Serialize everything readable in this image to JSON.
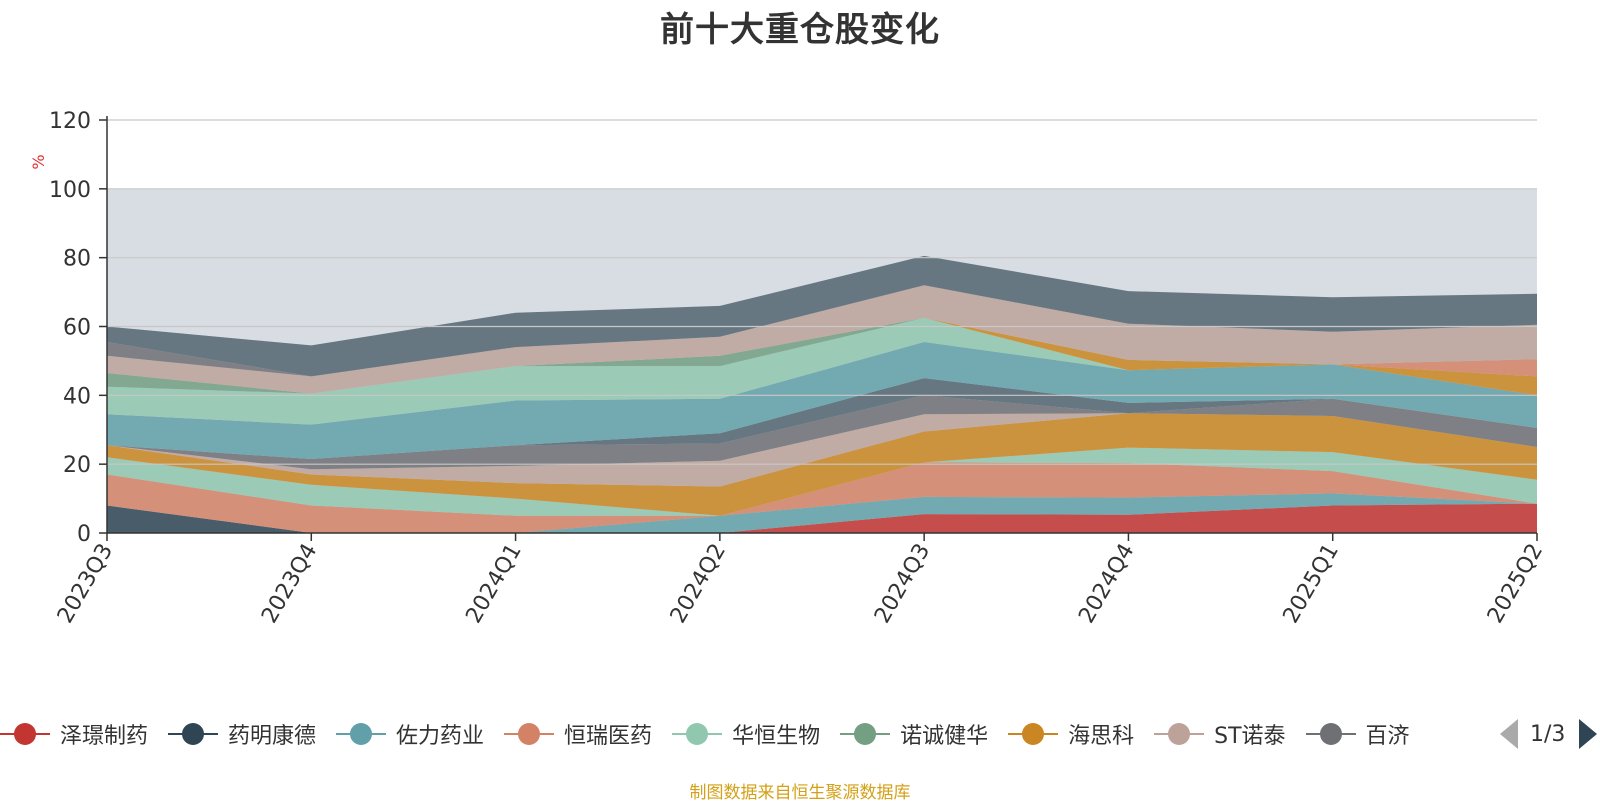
{
  "chart_data": {
    "type": "area",
    "title": "前十大重仓股变化",
    "ylabel": "%",
    "ylim": [
      0,
      120
    ],
    "yticks": [
      0,
      20,
      40,
      60,
      80,
      100,
      120
    ],
    "categories": [
      "2023Q3",
      "2023Q4",
      "2024Q1",
      "2024Q2",
      "2024Q3",
      "2024Q4",
      "2025Q1",
      "2025Q2"
    ],
    "stacked": true,
    "background_band": {
      "from": 0,
      "to": 100,
      "color": "#d8dde4"
    },
    "series": [
      {
        "name": "泽璟制药",
        "color": "#c23531",
        "values": [
          0,
          0,
          0,
          0,
          5.5,
          5.3,
          8,
          8.5
        ]
      },
      {
        "name": "药明康德",
        "color": "#2f4554",
        "values": [
          8,
          0,
          0,
          0,
          0,
          0,
          0,
          0
        ]
      },
      {
        "name": "佐力药业",
        "color": "#61a0a8",
        "values": [
          0,
          0,
          0,
          5,
          5,
          5,
          3.5,
          0
        ]
      },
      {
        "name": "恒瑞医药",
        "color": "#d48265",
        "values": [
          9,
          8,
          5,
          0,
          10,
          10,
          6.5,
          0
        ]
      },
      {
        "name": "华恒生物",
        "color": "#91c7ae",
        "values": [
          5,
          6,
          5,
          0,
          0,
          4.5,
          5.5,
          7
        ]
      },
      {
        "name": "诺诚健华",
        "color": "#749f83",
        "values": [
          0,
          0,
          0,
          0,
          0,
          0,
          0,
          0
        ]
      },
      {
        "name": "海思科",
        "color": "#ca8622",
        "values": [
          3.5,
          3,
          4.5,
          8.5,
          9,
          10,
          10.5,
          9.5
        ]
      },
      {
        "name": "ST诺泰",
        "color": "#bda29a",
        "values": [
          0,
          1.5,
          5,
          7.5,
          5,
          0,
          0,
          0
        ]
      },
      {
        "name": "百济",
        "color": "#6e7074",
        "values": [
          0,
          3,
          6,
          5,
          5.5,
          0,
          5,
          5.5
        ]
      },
      {
        "name": "",
        "color": "#546570",
        "values": [
          0,
          0,
          0,
          3,
          5,
          3,
          0,
          0
        ]
      },
      {
        "name": "",
        "color": "#6e7074",
        "values": [
          0,
          0,
          0,
          0,
          0,
          0,
          0,
          0
        ]
      },
      {
        "name": "",
        "color": "#61a0a8",
        "values": [
          9,
          10,
          13,
          10,
          10.5,
          9.5,
          10,
          9.5
        ]
      },
      {
        "name": "",
        "color": "#91c7ae",
        "values": [
          8,
          9,
          10,
          9.5,
          7,
          0,
          0,
          0
        ]
      },
      {
        "name": "",
        "color": "#749f83",
        "values": [
          4,
          0,
          0,
          3,
          0,
          0,
          0,
          0
        ]
      },
      {
        "name": "",
        "color": "#ca8622",
        "values": [
          0,
          0,
          0,
          0,
          0,
          3,
          0,
          5.5
        ]
      },
      {
        "name": "",
        "color": "#d48265",
        "values": [
          0,
          0,
          0,
          0,
          0,
          0,
          0,
          5
        ]
      },
      {
        "name": "",
        "color": "#bda29a",
        "values": [
          5,
          5,
          5.5,
          5.5,
          9.5,
          10.5,
          9.5,
          10
        ]
      },
      {
        "name": "",
        "color": "#6e7074",
        "values": [
          4,
          0,
          0,
          0,
          0,
          0,
          0,
          0
        ]
      },
      {
        "name": "",
        "color": "#546570",
        "values": [
          4.5,
          9,
          10,
          9,
          8.5,
          9.5,
          10,
          9
        ]
      }
    ]
  },
  "legend": {
    "items": [
      {
        "label": "泽璟制药",
        "color": "#c23531"
      },
      {
        "label": "药明康德",
        "color": "#2f4554"
      },
      {
        "label": "佐力药业",
        "color": "#61a0a8"
      },
      {
        "label": "恒瑞医药",
        "color": "#d48265"
      },
      {
        "label": "华恒生物",
        "color": "#91c7ae"
      },
      {
        "label": "诺诚健华",
        "color": "#749f83"
      },
      {
        "label": "海思科",
        "color": "#ca8622"
      },
      {
        "label": "ST诺泰",
        "color": "#bda29a"
      },
      {
        "label": "百济",
        "color": "#6e7074"
      }
    ],
    "page_label": "1/3",
    "prev_icon": "triangle-left-icon",
    "next_icon": "triangle-right-icon"
  },
  "source_note": "制图数据来自恒生聚源数据库"
}
